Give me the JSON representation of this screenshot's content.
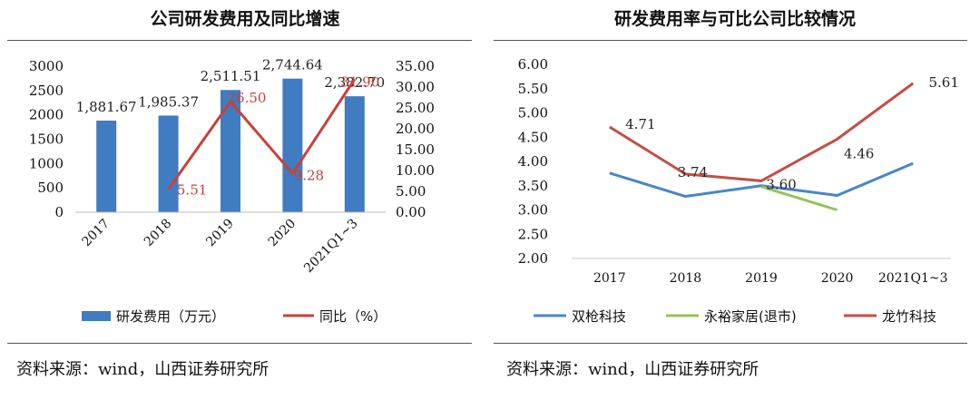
{
  "left_title": "公司研发费用及同比增速",
  "right_title": "研发费用率与可比公司比较情况",
  "left_source": "资料来源：wind，山西证券研究所",
  "right_source": "资料来源：wind，山西证券研究所",
  "chart_data": [
    {
      "type": "bar",
      "title": "公司研发费用及同比增速",
      "categories": [
        "2017",
        "2018",
        "2019",
        "2020",
        "2021Q1~3"
      ],
      "y_ticks": [
        "0",
        "500",
        "1000",
        "1500",
        "2000",
        "2500",
        "3000"
      ],
      "y2_ticks": [
        "0.00",
        "5.00",
        "10.00",
        "15.00",
        "20.00",
        "25.00",
        "30.00",
        "35.00"
      ],
      "ylim": [
        0,
        3000
      ],
      "y2lim": [
        0,
        35
      ],
      "series": [
        {
          "name": "研发费用（万元）",
          "type": "bar",
          "axis": "left",
          "color": "#3F7CC1",
          "values": [
            1881.67,
            1985.37,
            2511.51,
            2744.64,
            2382.7
          ],
          "labels": [
            "1,881.67",
            "1,985.37",
            "2,511.51",
            "2,744.64",
            "2,382.70"
          ]
        },
        {
          "name": "同比（%）",
          "type": "line",
          "axis": "right",
          "color": "#C9403A",
          "values": [
            null,
            5.51,
            26.5,
            9.28,
            31.9
          ],
          "labels": [
            "",
            "5.51",
            "26.50",
            "9.28",
            "31.90"
          ]
        }
      ],
      "legend": "bottom",
      "grid": false
    },
    {
      "type": "line",
      "title": "研发费用率与可比公司比较情况",
      "categories": [
        "2017",
        "2018",
        "2019",
        "2020",
        "2021Q1~3"
      ],
      "y_ticks": [
        "2.00",
        "2.50",
        "3.00",
        "3.50",
        "4.00",
        "4.50",
        "5.00",
        "5.50",
        "6.00"
      ],
      "ylim": [
        2.0,
        6.0
      ],
      "series": [
        {
          "name": "双枪科技",
          "color": "#4A86C5",
          "values": [
            3.76,
            3.28,
            3.5,
            3.3,
            3.96
          ],
          "labels": [
            "",
            "",
            "",
            "",
            ""
          ]
        },
        {
          "name": "永裕家居(退市)",
          "color": "#97C25A",
          "values": [
            null,
            null,
            3.48,
            3.0,
            null
          ],
          "labels": [
            "",
            "",
            "",
            "",
            ""
          ]
        },
        {
          "name": "龙竹科技",
          "color": "#C44E45",
          "values": [
            4.71,
            3.74,
            3.6,
            4.46,
            5.61
          ],
          "labels": [
            "4.71",
            "3.74",
            "3.60",
            "4.46",
            "5.61"
          ]
        }
      ],
      "legend": "bottom",
      "grid": false
    }
  ]
}
